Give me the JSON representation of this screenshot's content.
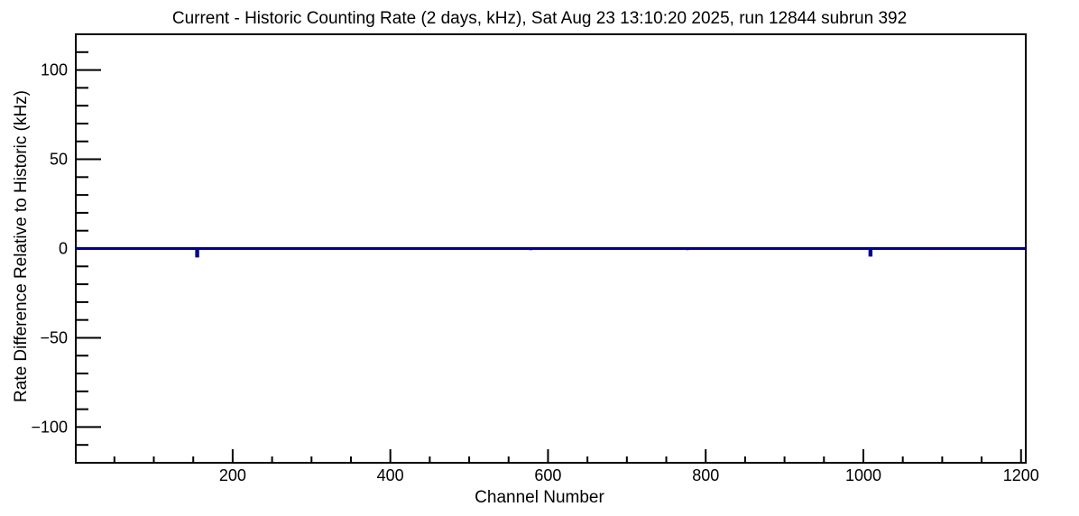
{
  "window": {
    "background": "#ffffff",
    "foreground": "#000000"
  },
  "chart_data": {
    "type": "line",
    "title": "Current - Historic Counting Rate (2 days, kHz), Sat Aug 23 13:10:20 2025, run 12844 subrun 392",
    "xlabel": "Channel Number",
    "ylabel": "Rate Difference Relative to Historic (kHz)",
    "xlim": [
      1,
      1206
    ],
    "ylim": [
      -120,
      120
    ],
    "x_major_ticks": [
      200,
      400,
      600,
      800,
      1000,
      1200
    ],
    "x_minor_step": 50,
    "y_major_ticks": [
      -100,
      -50,
      0,
      50,
      100
    ],
    "y_minor_step": 10,
    "grid": false,
    "legend_position": "none",
    "line_color": "#00008b",
    "baseline_value": 0,
    "series_note": "Rate difference is ~0 kHz for all channels except small spikes listed below",
    "spikes": [
      {
        "channel": 155,
        "value": -5.0,
        "width": 5
      },
      {
        "channel": 238,
        "value": 0.5,
        "width": 3
      },
      {
        "channel": 289,
        "value": -0.5,
        "width": 3
      },
      {
        "channel": 333,
        "value": -0.5,
        "width": 3
      },
      {
        "channel": 377,
        "value": 0.5,
        "width": 3
      },
      {
        "channel": 426,
        "value": 0.7,
        "width": 5
      },
      {
        "channel": 438,
        "value": -0.5,
        "width": 3
      },
      {
        "channel": 578,
        "value": -0.9,
        "width": 4
      },
      {
        "channel": 680,
        "value": -0.5,
        "width": 3
      },
      {
        "channel": 693,
        "value": 0.4,
        "width": 3
      },
      {
        "channel": 733,
        "value": -0.6,
        "width": 3
      },
      {
        "channel": 761,
        "value": -0.6,
        "width": 3
      },
      {
        "channel": 777,
        "value": -0.9,
        "width": 3
      },
      {
        "channel": 815,
        "value": -0.5,
        "width": 3
      },
      {
        "channel": 904,
        "value": -0.5,
        "width": 3
      },
      {
        "channel": 955,
        "value": -0.6,
        "width": 3
      },
      {
        "channel": 975,
        "value": -0.5,
        "width": 3
      },
      {
        "channel": 1009,
        "value": -4.5,
        "width": 5
      },
      {
        "channel": 1087,
        "value": -0.8,
        "width": 4
      },
      {
        "channel": 1109,
        "value": 0.5,
        "width": 3
      },
      {
        "channel": 1160,
        "value": -0.5,
        "width": 3
      }
    ]
  }
}
